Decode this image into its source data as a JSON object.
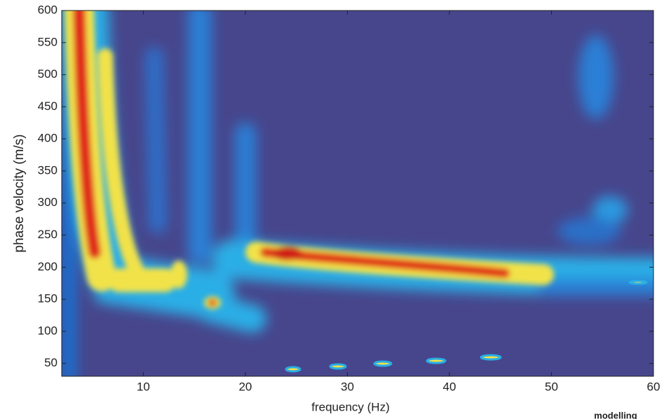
{
  "chart_data": {
    "type": "heatmap",
    "xlabel": "frequency (Hz)",
    "ylabel": "phase velocity (m/s)",
    "xlim": [
      2,
      60
    ],
    "ylim": [
      30,
      600
    ],
    "xticks": [
      10,
      20,
      30,
      40,
      50,
      60
    ],
    "yticks": [
      50,
      100,
      150,
      200,
      250,
      300,
      350,
      400,
      450,
      500,
      550,
      600
    ],
    "annotation": "modelling"
  }
}
